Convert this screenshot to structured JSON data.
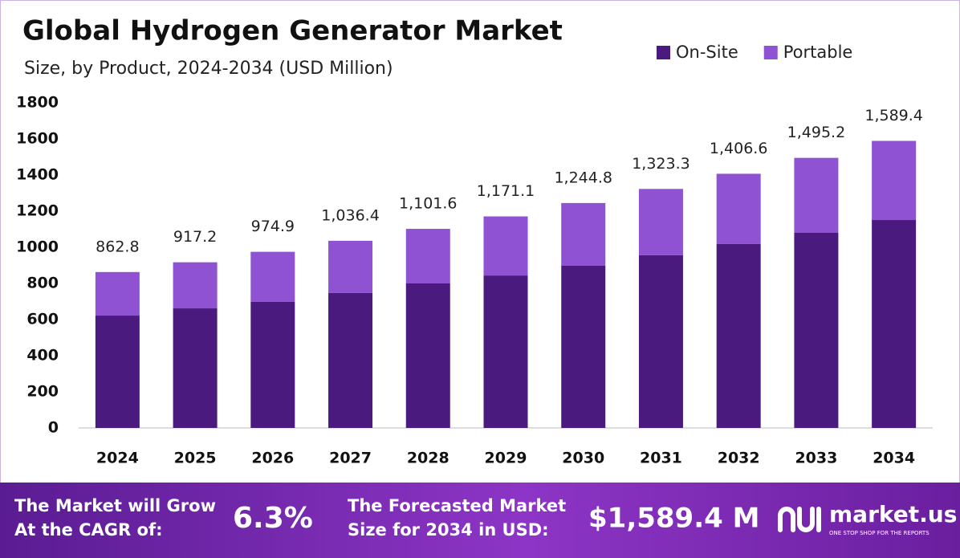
{
  "chart_data": {
    "type": "stacked_bar",
    "title": "Global Hydrogen Generator Market",
    "subtitle": "Size, by Product, 2024-2034 (USD Million)",
    "categories": [
      "2024",
      "2025",
      "2026",
      "2027",
      "2028",
      "2029",
      "2030",
      "2031",
      "2032",
      "2033",
      "2034"
    ],
    "series": [
      {
        "name": "On-Site",
        "color": "#4b1a7f",
        "values": [
          622,
          662,
          698,
          747,
          800,
          844,
          898,
          956,
          1018,
          1080,
          1151
        ]
      },
      {
        "name": "Portable",
        "color": "#8e52d3",
        "values": [
          241,
          255,
          277,
          289,
          302,
          327,
          347,
          367,
          389,
          415,
          438
        ]
      }
    ],
    "totals": [
      862.8,
      917.2,
      974.9,
      1036.4,
      1101.6,
      1171.1,
      1244.8,
      1323.3,
      1406.6,
      1495.2,
      1589.4
    ],
    "total_labels": [
      "862.8",
      "917.2",
      "974.9",
      "1,036.4",
      "1,101.6",
      "1,171.1",
      "1,244.8",
      "1,323.3",
      "1,406.6",
      "1,495.2",
      "1,589.4"
    ],
    "ylim": [
      0,
      1800
    ],
    "yticks": [
      0,
      200,
      400,
      600,
      800,
      1000,
      1200,
      1400,
      1600,
      1800
    ],
    "grid": false,
    "legend": "top-right"
  },
  "banner": {
    "cagr_line1": "The Market will Grow",
    "cagr_line2": "At the CAGR of:",
    "cagr_value": "6.3%",
    "forecast_line1": "The Forecasted Market",
    "forecast_line2": "Size for 2034 in USD:",
    "forecast_value": "$1,589.4 M",
    "brand": "market.us",
    "tagline": "ONE STOP SHOP FOR THE REPORTS"
  }
}
